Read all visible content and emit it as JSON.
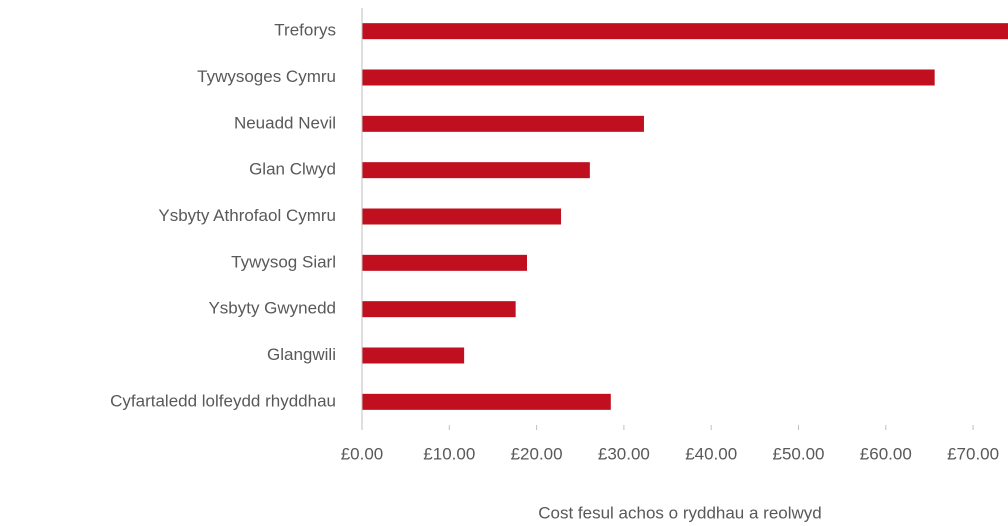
{
  "chart_data": {
    "type": "barh",
    "x_label": "Cost fesul achos o ryddhau a reolwyd",
    "categories": [
      "Treforys",
      "Tywysoges Cymru",
      "Neuadd Nevil",
      "Glan Clwyd",
      "Ysbyty Athrofaol Cymru",
      "Tywysog Siarl",
      "Ysbyty Gwynedd",
      "Glangwili",
      "Cyfartaledd lolfeydd rhyddhau"
    ],
    "values": [
      74,
      65.6,
      32.3,
      26.1,
      22.8,
      18.9,
      17.6,
      11.7,
      28.5
    ],
    "color": "#c00f1e",
    "xlim": [
      0,
      74
    ],
    "xticks": [
      {
        "value": 0,
        "label": "£0.00"
      },
      {
        "value": 10,
        "label": "£10.00"
      },
      {
        "value": 20,
        "label": "£20.00"
      },
      {
        "value": 30,
        "label": "£30.00"
      },
      {
        "value": 40,
        "label": "£40.00"
      },
      {
        "value": 50,
        "label": "£50.00"
      },
      {
        "value": 60,
        "label": "£60.00"
      },
      {
        "value": 70,
        "label": "£70.00"
      }
    ]
  }
}
